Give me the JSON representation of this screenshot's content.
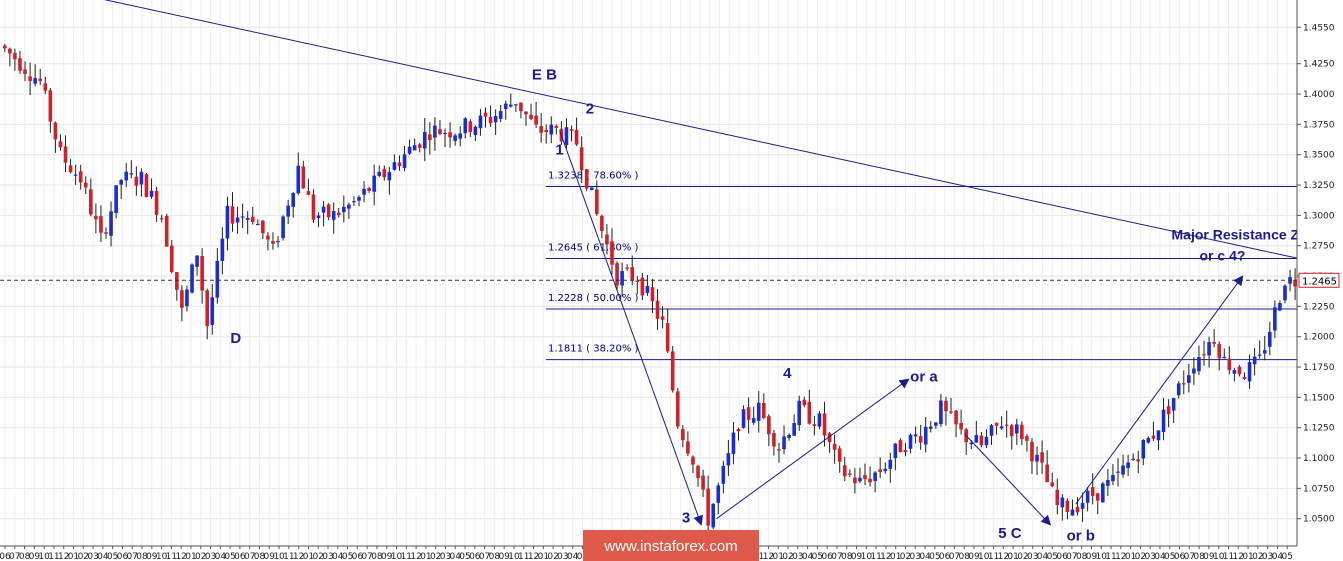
{
  "chart_data": {
    "type": "candlestick",
    "instrument_hint": "",
    "y_axis": {
      "ticks": [
        "1.4550",
        "1.4250",
        "1.4000",
        "1.3750",
        "1.3500",
        "1.3250",
        "1.3000",
        "1.2750",
        "1.2500",
        "1.2250",
        "1.2000",
        "1.1750",
        "1.1500",
        "1.1250",
        "1.1000",
        "1.0750",
        "1.0500"
      ],
      "tick_values": [
        1.455,
        1.425,
        1.4,
        1.375,
        1.35,
        1.325,
        1.3,
        1.275,
        1.25,
        1.225,
        1.2,
        1.175,
        1.15,
        1.125,
        1.1,
        1.075,
        1.05
      ],
      "ylim": [
        1.0275,
        1.4775
      ],
      "position": "right"
    },
    "x_axis": {
      "tick_labels": [
        "06",
        "07",
        "08",
        "09",
        "10",
        "11",
        "12",
        "01",
        "02",
        "03",
        "04",
        "05",
        "06",
        "07",
        "08",
        "09",
        "10",
        "11",
        "12",
        "01",
        "02",
        "03",
        "04",
        "05",
        "06",
        "07",
        "08",
        "09",
        "10",
        "11",
        "12",
        "01",
        "02",
        "03",
        "04",
        "05",
        "06",
        "07",
        "08",
        "09",
        "10",
        "11",
        "12",
        "01",
        "02",
        "03",
        "04",
        "05",
        "06",
        "07",
        "08",
        "09",
        "10",
        "11",
        "12",
        "01",
        "02",
        "03",
        "04",
        "05",
        "06",
        "07",
        "08",
        "09",
        "10",
        "11",
        "12",
        "01",
        "02",
        "03",
        "04",
        "05",
        "06",
        "07",
        "08",
        "09",
        "10",
        "11",
        "12",
        "01",
        "02",
        "03",
        "04",
        "05",
        "06",
        "07",
        "08",
        "09",
        "10",
        "11",
        "12",
        "01",
        "02",
        "03",
        "04",
        "05",
        "06",
        "07",
        "08",
        "09",
        "10",
        "11",
        "12",
        "01",
        "02",
        "03",
        "04",
        "05",
        "06",
        "07",
        "08",
        "09",
        "10",
        "11",
        "12",
        "01",
        "02",
        "03",
        "04",
        "05",
        "06",
        "07",
        "08",
        "09",
        "10",
        "11",
        "12",
        "01",
        "02",
        "03",
        "04",
        "05"
      ]
    },
    "series": [
      {
        "anchors": [
          [
            0,
            1.44
          ],
          [
            3,
            1.43
          ],
          [
            8,
            1.41
          ],
          [
            12,
            1.35
          ],
          [
            16,
            1.33
          ],
          [
            20,
            1.28
          ],
          [
            24,
            1.33
          ],
          [
            28,
            1.33
          ],
          [
            32,
            1.3
          ],
          [
            36,
            1.22
          ],
          [
            39,
            1.27
          ],
          [
            41,
            1.21
          ],
          [
            45,
            1.3
          ],
          [
            50,
            1.3
          ],
          [
            54,
            1.27
          ],
          [
            59,
            1.34
          ],
          [
            62,
            1.3
          ],
          [
            66,
            1.3
          ],
          [
            70,
            1.31
          ],
          [
            75,
            1.33
          ],
          [
            80,
            1.35
          ],
          [
            85,
            1.37
          ],
          [
            90,
            1.37
          ],
          [
            97,
            1.38
          ],
          [
            102,
            1.395
          ],
          [
            106,
            1.37
          ],
          [
            110,
            1.37
          ],
          [
            114,
            1.36
          ],
          [
            118,
            1.3
          ],
          [
            122,
            1.25
          ],
          [
            126,
            1.25
          ],
          [
            131,
            1.21
          ],
          [
            134,
            1.13
          ],
          [
            137,
            1.1
          ],
          [
            140,
            1.05
          ],
          [
            144,
            1.1
          ],
          [
            146,
            1.13
          ],
          [
            150,
            1.14
          ],
          [
            154,
            1.11
          ],
          [
            158,
            1.14
          ],
          [
            162,
            1.13
          ],
          [
            166,
            1.09
          ],
          [
            170,
            1.08
          ],
          [
            174,
            1.09
          ],
          [
            178,
            1.11
          ],
          [
            182,
            1.12
          ],
          [
            186,
            1.14
          ],
          [
            190,
            1.12
          ],
          [
            194,
            1.11
          ],
          [
            198,
            1.13
          ],
          [
            202,
            1.12
          ],
          [
            206,
            1.09
          ],
          [
            209,
            1.06
          ],
          [
            212,
            1.06
          ],
          [
            216,
            1.07
          ],
          [
            220,
            1.08
          ],
          [
            224,
            1.1
          ],
          [
            228,
            1.12
          ],
          [
            232,
            1.15
          ],
          [
            236,
            1.18
          ],
          [
            240,
            1.2
          ],
          [
            242,
            1.18
          ],
          [
            246,
            1.17
          ],
          [
            249,
            1.18
          ],
          [
            252,
            1.22
          ],
          [
            254,
            1.248
          ],
          [
            255,
            1.2465
          ]
        ]
      }
    ],
    "trendline": {
      "from": [
        -10,
        1.505
      ],
      "to": [
        261,
        1.26
      ]
    },
    "fib_levels": [
      {
        "value": 1.3238,
        "label": "1.3238 ( 78.60% )"
      },
      {
        "value": 1.2645,
        "label": "1.2645 ( 61.80% )"
      },
      {
        "value": 1.2228,
        "label": "1.2228 ( 50.00% )"
      },
      {
        "value": 1.1811,
        "label": "1.1811 ( 38.20% )"
      }
    ],
    "last_price": {
      "value": 1.2465,
      "label": "1.2465"
    },
    "wave_labels": [
      {
        "text": "E B",
        "x": 107,
        "y": 1.412
      },
      {
        "text": "2",
        "x": 116,
        "y": 1.384
      },
      {
        "text": "1",
        "x": 110,
        "y": 1.35
      },
      {
        "text": "D",
        "x": 46,
        "y": 1.195
      },
      {
        "text": "3",
        "x": 135,
        "y": 1.047
      },
      {
        "text": "4",
        "x": 155,
        "y": 1.166
      },
      {
        "text": "or a",
        "x": 182,
        "y": 1.163
      },
      {
        "text": "5 C",
        "x": 199,
        "y": 1.034
      },
      {
        "text": "or b",
        "x": 213,
        "y": 1.032
      },
      {
        "text": "Major Resistance Zone",
        "x": 246,
        "y": 1.28
      },
      {
        "text": "or c 4?",
        "x": 241,
        "y": 1.263
      }
    ],
    "arrows": [
      {
        "from": [
          110,
          1.37
        ],
        "to": [
          138,
          1.045
        ]
      },
      {
        "from": [
          141,
          1.05
        ],
        "to": [
          179,
          1.165
        ]
      },
      {
        "from": [
          190,
          1.12
        ],
        "to": [
          207,
          1.045
        ]
      },
      {
        "from": [
          212,
          1.062
        ],
        "to": [
          245,
          1.25
        ]
      }
    ],
    "watermark": "www.instaforex.com"
  },
  "colors": {
    "background": "#ffffff",
    "candle_up": "#1a2ecc",
    "candle_down": "#d0202a",
    "wick": "#1f1f1f",
    "lines": "#1c1c8c",
    "watermark_bg": "#e05a4b"
  }
}
